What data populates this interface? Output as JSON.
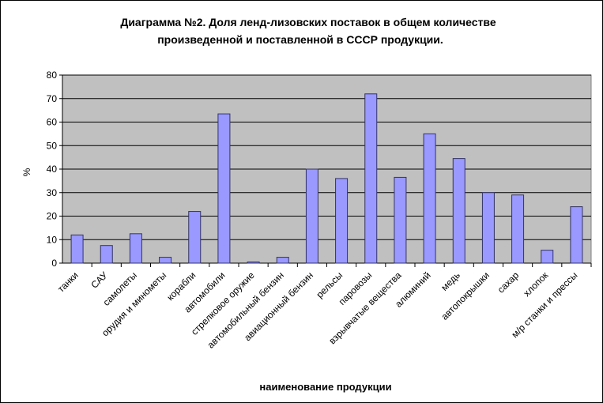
{
  "chart_data": {
    "type": "bar",
    "title_lines": [
      "Диаграмма №2. Доля ленд-лизовских поставок в общем количестве",
      "произведенной и поставленной в СССР продукции."
    ],
    "xlabel": "наименование продукции",
    "ylabel": "%",
    "ylim": [
      0,
      80
    ],
    "yticks": [
      0,
      10,
      20,
      30,
      40,
      50,
      60,
      70,
      80
    ],
    "grid": true,
    "legend": "none",
    "categories": [
      "танки",
      "САУ",
      "самолеты",
      "орудия и минометы",
      "корабли",
      "автомобили",
      "стрелковое оружие",
      "автомобильный бензин",
      "авиационный бензин",
      "рельсы",
      "паровозы",
      "взрывчатые вещества",
      "алюминий",
      "медь",
      "автопокрышки",
      "сахар",
      "хлопок",
      "м/р станки и прессы"
    ],
    "values": [
      12,
      7.5,
      12.5,
      2.5,
      22,
      63.5,
      0.5,
      2.5,
      40,
      36,
      72,
      36.5,
      55,
      44.5,
      30,
      29,
      5.5,
      24
    ],
    "colors": {
      "bar_fill": "#9999ff",
      "bar_stroke": "#333366",
      "plot_bg": "#c0c0c0",
      "grid": "#000000"
    }
  }
}
